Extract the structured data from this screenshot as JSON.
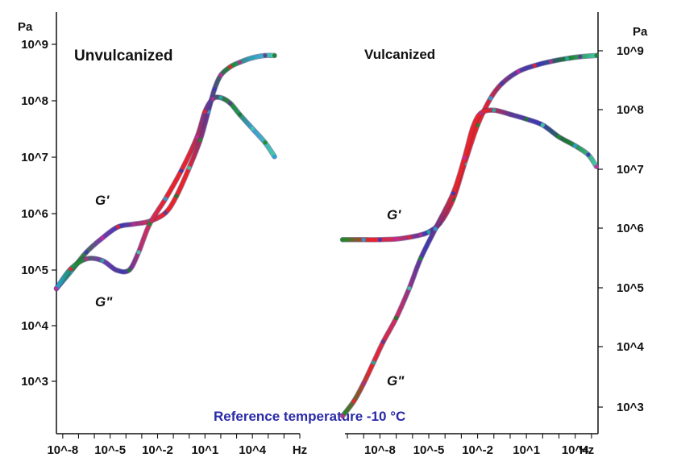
{
  "chart_data": [
    {
      "type": "line",
      "title": "Unvulcanized",
      "x_unit": "Hz",
      "y_unit": "Pa",
      "x_scale": "log",
      "y_scale": "log",
      "xlim_exponent": [
        -8.4,
        7
      ],
      "ylim_exponent": [
        2.1,
        9.5
      ],
      "x_tick_labels": [
        "10^-8",
        "10^-5",
        "10^-2",
        "10^1",
        "10^4"
      ],
      "y_tick_labels": [
        "10^3",
        "10^4",
        "10^5",
        "10^6",
        "10^7",
        "10^8",
        "10^9"
      ],
      "series": [
        {
          "name": "G'",
          "x_exponent": [
            -8.4,
            -7.5,
            -6.5,
            -5.5,
            -4.5,
            -3.5,
            -2.5,
            -1.5,
            -0.8,
            0,
            0.7,
            1.2,
            1.6,
            2.0,
            2.6,
            3.2,
            4.0,
            4.8,
            5.4
          ],
          "y_exponent": [
            4.65,
            4.95,
            5.3,
            5.55,
            5.75,
            5.8,
            5.85,
            6.0,
            6.3,
            6.8,
            7.3,
            7.8,
            8.2,
            8.45,
            8.6,
            8.68,
            8.76,
            8.8,
            8.8
          ]
        },
        {
          "name": "G\"",
          "x_exponent": [
            -8.4,
            -7.5,
            -6.5,
            -5.5,
            -4.6,
            -3.8,
            -3.2,
            -2.5,
            -1.5,
            -0.5,
            0.5,
            1.0,
            1.5,
            2.0,
            2.6,
            3.2,
            4.0,
            4.8,
            5.4
          ],
          "y_exponent": [
            4.65,
            5.0,
            5.18,
            5.15,
            4.98,
            4.98,
            5.3,
            5.8,
            6.25,
            6.75,
            7.35,
            7.8,
            8.03,
            8.05,
            7.95,
            7.75,
            7.5,
            7.25,
            7.0
          ]
        }
      ],
      "annotations": [
        "G'",
        "G\"",
        "Reference temperature -10 °C"
      ]
    },
    {
      "type": "line",
      "title": "Vulcanized",
      "x_unit": "Hz",
      "y_unit": "Pa",
      "x_scale": "log",
      "y_scale": "log",
      "xlim_exponent": [
        -10.3,
        5.4
      ],
      "ylim_exponent": [
        2.7,
        9.6
      ],
      "x_tick_labels": [
        "10^-8",
        "10^-5",
        "10^-2",
        "10^1",
        "10^4"
      ],
      "y_tick_labels": [
        "10^3",
        "10^4",
        "10^5",
        "10^6",
        "10^7",
        "10^8",
        "10^9"
      ],
      "series": [
        {
          "name": "G'",
          "x_exponent": [
            -10.3,
            -9,
            -8,
            -7,
            -6.2,
            -5.5,
            -5.0,
            -4.3,
            -3.5,
            -2.8,
            -2.0,
            -1.2,
            -0.5,
            0.5,
            1.5,
            2.5,
            3.5,
            4.3,
            5.3
          ],
          "y_exponent": [
            5.82,
            5.82,
            5.82,
            5.83,
            5.86,
            5.9,
            5.95,
            6.1,
            6.5,
            7.1,
            7.75,
            8.2,
            8.45,
            8.65,
            8.75,
            8.82,
            8.87,
            8.9,
            8.92
          ]
        },
        {
          "name": "G\"",
          "x_exponent": [
            -10.3,
            -9.6,
            -9.0,
            -8.4,
            -7.8,
            -7.0,
            -6.2,
            -5.5,
            -4.6,
            -3.5,
            -2.8,
            -2.3,
            -1.8,
            -1.0,
            0,
            1.0,
            2.0,
            3.0,
            4.0,
            4.8,
            5.3
          ],
          "y_exponent": [
            2.85,
            3.1,
            3.4,
            3.75,
            4.1,
            4.5,
            5.0,
            5.5,
            6.0,
            6.6,
            7.2,
            7.7,
            7.95,
            8.0,
            7.93,
            7.85,
            7.75,
            7.55,
            7.4,
            7.25,
            7.05
          ]
        }
      ],
      "annotations": [
        "G'",
        "G\""
      ]
    }
  ]
}
